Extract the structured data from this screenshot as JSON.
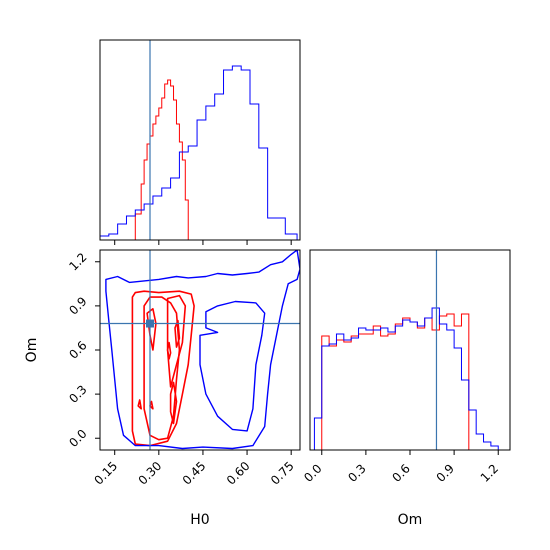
{
  "chart_data": {
    "type": "corner",
    "truth": {
      "H0": 0.27,
      "Om": 0.78
    },
    "colors": {
      "series_a": "#ff0000",
      "series_b": "#0000ff",
      "truth": "#3b75af"
    },
    "axes": {
      "H0": {
        "label": "H0",
        "range": [
          0.1,
          0.78
        ],
        "ticks": [
          "0.15",
          "0.30",
          "0.45",
          "0.60",
          "0.75"
        ]
      },
      "Om": {
        "label": "Om",
        "range": [
          -0.08,
          1.28
        ],
        "ticks": [
          "0.0",
          "0.3",
          "0.6",
          "0.9",
          "1.2"
        ]
      }
    },
    "hist_H0": {
      "series": [
        {
          "bins": [
            [
              0.2,
              0.22,
              0.0
            ],
            [
              0.22,
              0.24,
              0.13
            ],
            [
              0.24,
              0.25,
              0.28
            ],
            [
              0.25,
              0.26,
              0.4
            ],
            [
              0.26,
              0.27,
              0.48
            ],
            [
              0.27,
              0.28,
              0.52
            ],
            [
              0.28,
              0.29,
              0.58
            ],
            [
              0.29,
              0.3,
              0.62
            ],
            [
              0.3,
              0.31,
              0.66
            ],
            [
              0.31,
              0.32,
              0.71
            ],
            [
              0.32,
              0.33,
              0.78
            ],
            [
              0.33,
              0.34,
              0.8
            ],
            [
              0.34,
              0.35,
              0.77
            ],
            [
              0.35,
              0.36,
              0.7
            ],
            [
              0.36,
              0.37,
              0.58
            ],
            [
              0.37,
              0.38,
              0.49
            ],
            [
              0.38,
              0.39,
              0.4
            ],
            [
              0.39,
              0.4,
              0.2
            ],
            [
              0.4,
              0.41,
              0.0
            ]
          ]
        },
        {
          "bins": [
            [
              0.1,
              0.13,
              0.02
            ],
            [
              0.13,
              0.16,
              0.03
            ],
            [
              0.16,
              0.19,
              0.08
            ],
            [
              0.19,
              0.22,
              0.12
            ],
            [
              0.22,
              0.25,
              0.15
            ],
            [
              0.25,
              0.28,
              0.18
            ],
            [
              0.28,
              0.31,
              0.22
            ],
            [
              0.31,
              0.34,
              0.26
            ],
            [
              0.34,
              0.37,
              0.31
            ],
            [
              0.37,
              0.4,
              0.44
            ],
            [
              0.4,
              0.43,
              0.47
            ],
            [
              0.43,
              0.46,
              0.6
            ],
            [
              0.46,
              0.49,
              0.67
            ],
            [
              0.49,
              0.52,
              0.73
            ],
            [
              0.52,
              0.55,
              0.85
            ],
            [
              0.55,
              0.58,
              0.87
            ],
            [
              0.58,
              0.61,
              0.85
            ],
            [
              0.61,
              0.64,
              0.68
            ],
            [
              0.64,
              0.67,
              0.46
            ],
            [
              0.67,
              0.7,
              0.11
            ],
            [
              0.7,
              0.73,
              0.11
            ],
            [
              0.73,
              0.77,
              0.03
            ]
          ]
        }
      ]
    },
    "hist_Om": {
      "series": [
        {
          "bins": [
            [
              0.0,
              0.05,
              0.57
            ],
            [
              0.05,
              0.1,
              0.52
            ],
            [
              0.1,
              0.15,
              0.55
            ],
            [
              0.15,
              0.2,
              0.54
            ],
            [
              0.2,
              0.25,
              0.57
            ],
            [
              0.25,
              0.3,
              0.58
            ],
            [
              0.3,
              0.35,
              0.58
            ],
            [
              0.35,
              0.4,
              0.62
            ],
            [
              0.4,
              0.45,
              0.57
            ],
            [
              0.45,
              0.5,
              0.58
            ],
            [
              0.5,
              0.55,
              0.63
            ],
            [
              0.55,
              0.6,
              0.66
            ],
            [
              0.6,
              0.65,
              0.64
            ],
            [
              0.65,
              0.7,
              0.61
            ],
            [
              0.7,
              0.75,
              0.66
            ],
            [
              0.75,
              0.8,
              0.6
            ],
            [
              0.8,
              0.85,
              0.67
            ],
            [
              0.85,
              0.9,
              0.68
            ],
            [
              0.9,
              0.95,
              0.62
            ],
            [
              0.95,
              1.0,
              0.68
            ],
            [
              1.0,
              1.0,
              0.0
            ]
          ]
        },
        {
          "bins": [
            [
              -0.05,
              0.0,
              0.16
            ],
            [
              0.0,
              0.05,
              0.52
            ],
            [
              0.05,
              0.1,
              0.53
            ],
            [
              0.1,
              0.15,
              0.58
            ],
            [
              0.15,
              0.2,
              0.55
            ],
            [
              0.2,
              0.25,
              0.56
            ],
            [
              0.25,
              0.3,
              0.61
            ],
            [
              0.3,
              0.35,
              0.6
            ],
            [
              0.35,
              0.4,
              0.6
            ],
            [
              0.4,
              0.45,
              0.61
            ],
            [
              0.45,
              0.5,
              0.59
            ],
            [
              0.5,
              0.55,
              0.62
            ],
            [
              0.55,
              0.6,
              0.65
            ],
            [
              0.6,
              0.65,
              0.64
            ],
            [
              0.65,
              0.7,
              0.62
            ],
            [
              0.7,
              0.75,
              0.66
            ],
            [
              0.75,
              0.8,
              0.71
            ],
            [
              0.8,
              0.85,
              0.63
            ],
            [
              0.85,
              0.9,
              0.6
            ],
            [
              0.9,
              0.95,
              0.51
            ],
            [
              0.95,
              1.0,
              0.35
            ],
            [
              1.0,
              1.05,
              0.2
            ],
            [
              1.05,
              1.1,
              0.08
            ],
            [
              1.1,
              1.15,
              0.04
            ],
            [
              1.15,
              1.2,
              0.02
            ]
          ]
        }
      ]
    },
    "contours": [
      {
        "series": 0,
        "points": [
          [
            0.21,
            0.96
          ],
          [
            0.22,
            0.99
          ],
          [
            0.25,
            1.0
          ],
          [
            0.3,
            0.99
          ],
          [
            0.37,
            1.0
          ],
          [
            0.41,
            0.98
          ],
          [
            0.42,
            0.9
          ],
          [
            0.41,
            0.7
          ],
          [
            0.4,
            0.5
          ],
          [
            0.38,
            0.3
          ],
          [
            0.36,
            0.1
          ],
          [
            0.33,
            -0.02
          ],
          [
            0.27,
            -0.05
          ],
          [
            0.22,
            -0.04
          ],
          [
            0.21,
            0.05
          ],
          [
            0.21,
            0.4
          ],
          [
            0.21,
            0.7
          ]
        ]
      },
      {
        "series": 0,
        "points": [
          [
            0.25,
            0.9
          ],
          [
            0.27,
            0.96
          ],
          [
            0.31,
            0.96
          ],
          [
            0.34,
            0.92
          ],
          [
            0.36,
            0.85
          ],
          [
            0.37,
            0.6
          ],
          [
            0.36,
            0.4
          ],
          [
            0.35,
            0.15
          ],
          [
            0.33,
            0.0
          ],
          [
            0.3,
            -0.01
          ],
          [
            0.27,
            0.02
          ],
          [
            0.25,
            0.2
          ],
          [
            0.25,
            0.6
          ]
        ]
      },
      {
        "series": 0,
        "points": [
          [
            0.33,
            0.95
          ],
          [
            0.37,
            0.97
          ],
          [
            0.39,
            0.9
          ],
          [
            0.38,
            0.65
          ],
          [
            0.36,
            0.5
          ],
          [
            0.34,
            0.35
          ],
          [
            0.33,
            0.6
          ],
          [
            0.33,
            0.8
          ]
        ]
      },
      {
        "series": 0,
        "points": [
          [
            0.26,
            0.85
          ],
          [
            0.28,
            0.88
          ],
          [
            0.29,
            0.78
          ],
          [
            0.28,
            0.6
          ],
          [
            0.27,
            0.7
          ]
        ]
      },
      {
        "series": 0,
        "points": [
          [
            0.34,
            0.3
          ],
          [
            0.35,
            0.38
          ],
          [
            0.36,
            0.25
          ],
          [
            0.35,
            0.1
          ],
          [
            0.34,
            0.18
          ]
        ]
      },
      {
        "series": 0,
        "points": [
          [
            0.355,
            0.75
          ],
          [
            0.365,
            0.8
          ],
          [
            0.37,
            0.68
          ],
          [
            0.36,
            0.62
          ]
        ]
      },
      {
        "series": 0,
        "points": [
          [
            0.33,
            0.6
          ],
          [
            0.335,
            0.65
          ],
          [
            0.34,
            0.58
          ],
          [
            0.335,
            0.54
          ]
        ]
      },
      {
        "series": 0,
        "points": [
          [
            0.23,
            0.22
          ],
          [
            0.235,
            0.26
          ],
          [
            0.24,
            0.2
          ]
        ]
      },
      {
        "series": 0,
        "points": [
          [
            0.27,
            0.22
          ],
          [
            0.275,
            0.25
          ],
          [
            0.28,
            0.2
          ]
        ]
      },
      {
        "series": 1,
        "points": [
          [
            0.12,
            1.08
          ],
          [
            0.16,
            1.1
          ],
          [
            0.2,
            1.06
          ],
          [
            0.3,
            1.08
          ],
          [
            0.36,
            1.1
          ],
          [
            0.4,
            1.09
          ],
          [
            0.46,
            1.1
          ],
          [
            0.5,
            1.12
          ],
          [
            0.55,
            1.11
          ],
          [
            0.6,
            1.12
          ],
          [
            0.64,
            1.13
          ],
          [
            0.68,
            1.18
          ],
          [
            0.72,
            1.2
          ],
          [
            0.75,
            1.25
          ],
          [
            0.77,
            1.28
          ],
          [
            0.78,
            1.15
          ],
          [
            0.77,
            1.08
          ],
          [
            0.74,
            1.05
          ],
          [
            0.72,
            0.9
          ],
          [
            0.7,
            0.7
          ],
          [
            0.68,
            0.5
          ],
          [
            0.67,
            0.3
          ],
          [
            0.66,
            0.08
          ],
          [
            0.62,
            -0.05
          ],
          [
            0.55,
            -0.07
          ],
          [
            0.45,
            -0.06
          ],
          [
            0.38,
            -0.07
          ],
          [
            0.3,
            -0.05
          ],
          [
            0.22,
            -0.05
          ],
          [
            0.18,
            0.02
          ],
          [
            0.16,
            0.2
          ],
          [
            0.15,
            0.4
          ],
          [
            0.14,
            0.6
          ],
          [
            0.13,
            0.8
          ],
          [
            0.12,
            1.0
          ]
        ]
      },
      {
        "series": 1,
        "points": [
          [
            0.46,
            0.86
          ],
          [
            0.5,
            0.9
          ],
          [
            0.56,
            0.93
          ],
          [
            0.63,
            0.92
          ],
          [
            0.66,
            0.85
          ],
          [
            0.65,
            0.7
          ],
          [
            0.63,
            0.5
          ],
          [
            0.62,
            0.2
          ],
          [
            0.6,
            0.05
          ],
          [
            0.55,
            0.06
          ],
          [
            0.5,
            0.15
          ],
          [
            0.46,
            0.3
          ],
          [
            0.44,
            0.5
          ],
          [
            0.44,
            0.7
          ],
          [
            0.5,
            0.72
          ],
          [
            0.46,
            0.75
          ]
        ]
      }
    ]
  }
}
